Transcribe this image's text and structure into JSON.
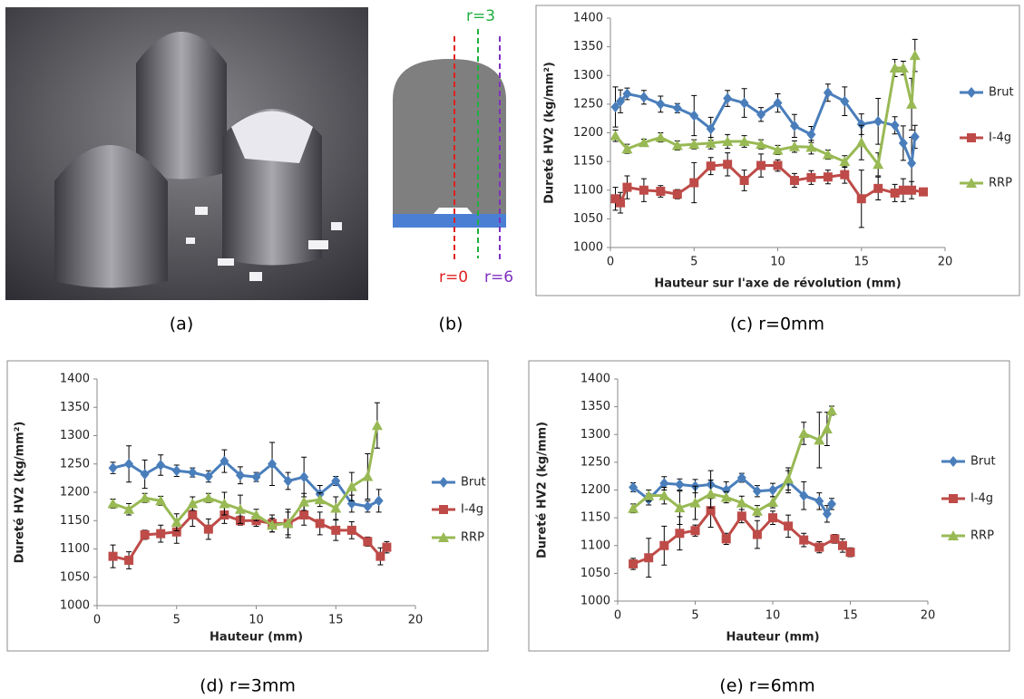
{
  "captions": [
    "(a)",
    "(b)",
    "(c) r=0mm",
    "(d) r=3mm",
    "(e) r=6mm"
  ],
  "diagram": {
    "labels": [
      "r=3",
      "r=0",
      "r=6"
    ]
  },
  "chart_data": [
    {
      "type": "line",
      "y_label": "Dureté HV2 (kg/mm²)",
      "x_label": "Hauteur sur l'axe de révolution (mm)",
      "xlim": [
        0,
        20
      ],
      "xticks": [
        0,
        5,
        10,
        15,
        20
      ],
      "ylim": [
        1000,
        1400
      ],
      "yticks": [
        1000,
        1050,
        1100,
        1150,
        1200,
        1250,
        1300,
        1350,
        1400
      ],
      "legend": "right",
      "series": [
        {
          "name": "Brut",
          "color": "#4a7ebb",
          "marker": "diamond",
          "x": [
            0.3,
            0.6,
            1,
            2,
            3,
            4,
            5,
            6,
            7,
            8,
            9,
            10,
            11,
            12,
            13,
            14,
            15,
            16,
            17,
            17.5,
            18,
            18.2
          ],
          "values": [
            1245,
            1255,
            1268,
            1262,
            1250,
            1243,
            1230,
            1207,
            1260,
            1252,
            1232,
            1252,
            1212,
            1197,
            1270,
            1255,
            1215,
            1220,
            1213,
            1182,
            1147,
            1193
          ],
          "errors": [
            35,
            20,
            10,
            12,
            14,
            8,
            35,
            20,
            14,
            25,
            12,
            16,
            20,
            14,
            15,
            25,
            18,
            40,
            15,
            30,
            45,
            20
          ]
        },
        {
          "name": "I-4g",
          "color": "#be4b48",
          "marker": "square",
          "x": [
            0.3,
            0.6,
            1,
            2,
            3,
            4,
            5,
            6,
            7,
            8,
            9,
            10,
            11,
            12,
            13,
            14,
            15,
            16,
            17,
            17.5,
            18,
            18.7
          ],
          "values": [
            1085,
            1078,
            1105,
            1100,
            1098,
            1093,
            1113,
            1142,
            1145,
            1117,
            1143,
            1143,
            1117,
            1122,
            1123,
            1127,
            1085,
            1103,
            1095,
            1100,
            1100,
            1097
          ],
          "errors": [
            20,
            18,
            20,
            20,
            10,
            8,
            35,
            15,
            20,
            18,
            20,
            10,
            12,
            12,
            12,
            15,
            50,
            20,
            15,
            20,
            15,
            6
          ]
        },
        {
          "name": "RRP",
          "color": "#98b954",
          "marker": "triangle",
          "x": [
            0.3,
            1,
            2,
            3,
            4,
            5,
            6,
            7,
            8,
            9,
            10,
            11,
            12,
            13,
            14,
            15,
            16,
            17,
            17.5,
            18,
            18.2
          ],
          "values": [
            1195,
            1172,
            1183,
            1192,
            1178,
            1180,
            1182,
            1185,
            1185,
            1180,
            1170,
            1176,
            1175,
            1162,
            1150,
            1183,
            1145,
            1313,
            1313,
            1250,
            1335
          ],
          "errors": [
            10,
            8,
            6,
            8,
            8,
            8,
            10,
            12,
            10,
            8,
            8,
            10,
            12,
            8,
            10,
            30,
            20,
            15,
            12,
            45,
            28
          ]
        }
      ]
    },
    {
      "type": "line",
      "y_label": "Dureté HV2 (kg/mm²)",
      "x_label": "Hauteur (mm)",
      "xlim": [
        0,
        20
      ],
      "xticks": [
        0,
        5,
        10,
        15,
        20
      ],
      "ylim": [
        1000,
        1400
      ],
      "yticks": [
        1000,
        1050,
        1100,
        1150,
        1200,
        1250,
        1300,
        1350,
        1400
      ],
      "legend": "right",
      "series": [
        {
          "name": "Brut",
          "color": "#4a7ebb",
          "marker": "diamond",
          "x": [
            1,
            2,
            3,
            4,
            5,
            6,
            7,
            8,
            9,
            10,
            11,
            12,
            13,
            14,
            15,
            16,
            17,
            17.7
          ],
          "values": [
            1243,
            1250,
            1232,
            1248,
            1238,
            1235,
            1228,
            1255,
            1230,
            1227,
            1250,
            1220,
            1227,
            1197,
            1220,
            1180,
            1175,
            1185
          ],
          "errors": [
            10,
            32,
            25,
            18,
            10,
            8,
            10,
            20,
            15,
            8,
            38,
            15,
            35,
            15,
            8,
            15,
            10,
            20
          ]
        },
        {
          "name": "I-4g",
          "color": "#be4b48",
          "marker": "square",
          "x": [
            1,
            2,
            3,
            4,
            5,
            6,
            7,
            8,
            9,
            10,
            11,
            12,
            13,
            14,
            15,
            16,
            17,
            17.8,
            18.2
          ],
          "values": [
            1087,
            1080,
            1125,
            1127,
            1130,
            1160,
            1135,
            1160,
            1150,
            1150,
            1145,
            1145,
            1160,
            1145,
            1133,
            1133,
            1113,
            1087,
            1103
          ],
          "errors": [
            20,
            15,
            8,
            15,
            20,
            20,
            18,
            15,
            8,
            10,
            15,
            25,
            18,
            20,
            18,
            15,
            8,
            15,
            10
          ]
        },
        {
          "name": "RRP",
          "color": "#98b954",
          "marker": "triangle",
          "x": [
            1,
            2,
            3,
            4,
            5,
            6,
            7,
            8,
            9,
            10,
            11,
            12,
            13,
            14,
            15,
            16,
            17,
            17.6
          ],
          "values": [
            1180,
            1170,
            1190,
            1185,
            1147,
            1180,
            1190,
            1180,
            1170,
            1160,
            1142,
            1145,
            1183,
            1187,
            1172,
            1210,
            1228,
            1318
          ],
          "errors": [
            8,
            10,
            8,
            8,
            15,
            12,
            8,
            20,
            25,
            10,
            12,
            20,
            15,
            12,
            20,
            25,
            40,
            40
          ]
        }
      ]
    },
    {
      "type": "line",
      "y_label": "Dureté HV2 (kg/mm)",
      "x_label": "Hauteur (mm)",
      "xlim": [
        0,
        20
      ],
      "xticks": [
        0,
        5,
        10,
        15,
        20
      ],
      "ylim": [
        1000,
        1400
      ],
      "yticks": [
        1000,
        1050,
        1100,
        1150,
        1200,
        1250,
        1300,
        1350,
        1400
      ],
      "legend": "right",
      "series": [
        {
          "name": "Brut",
          "color": "#4a7ebb",
          "marker": "diamond",
          "x": [
            1,
            2,
            3,
            4,
            5,
            6,
            7,
            8,
            9,
            10,
            11,
            12,
            13,
            13.5,
            13.8
          ],
          "values": [
            1205,
            1183,
            1212,
            1210,
            1207,
            1210,
            1200,
            1222,
            1198,
            1200,
            1215,
            1190,
            1180,
            1157,
            1175
          ],
          "errors": [
            8,
            10,
            12,
            10,
            12,
            25,
            15,
            8,
            10,
            12,
            20,
            25,
            15,
            15,
            10
          ]
        },
        {
          "name": "I-4g",
          "color": "#be4b48",
          "marker": "square",
          "x": [
            1,
            2,
            3,
            4,
            5,
            6,
            7,
            8,
            9,
            10,
            11,
            12,
            13,
            14,
            14.5,
            15
          ],
          "values": [
            1067,
            1078,
            1100,
            1122,
            1127,
            1163,
            1112,
            1153,
            1120,
            1150,
            1135,
            1110,
            1097,
            1112,
            1100,
            1088
          ],
          "errors": [
            10,
            35,
            35,
            30,
            10,
            30,
            10,
            12,
            25,
            12,
            20,
            12,
            10,
            8,
            12,
            8
          ]
        },
        {
          "name": "RRP",
          "color": "#98b954",
          "marker": "triangle",
          "x": [
            1,
            2,
            3,
            4,
            5,
            6,
            7,
            8,
            9,
            10,
            11,
            12,
            13,
            13.5,
            13.8
          ],
          "values": [
            1167,
            1190,
            1190,
            1168,
            1177,
            1193,
            1187,
            1177,
            1162,
            1178,
            1220,
            1302,
            1290,
            1310,
            1343
          ],
          "errors": [
            8,
            10,
            15,
            30,
            30,
            25,
            10,
            12,
            10,
            10,
            20,
            20,
            50,
            30,
            8
          ]
        }
      ]
    }
  ]
}
